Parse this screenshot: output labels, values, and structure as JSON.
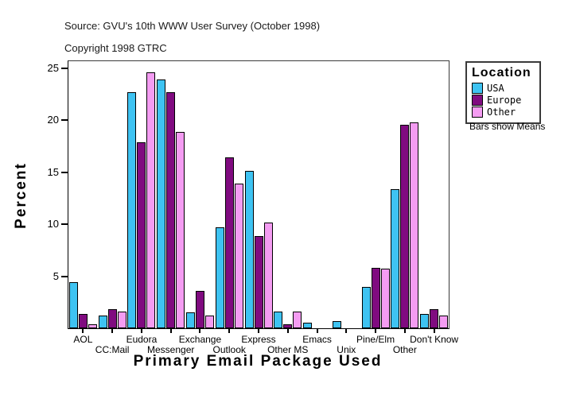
{
  "header": {
    "source": "Source: GVU's 10th WWW User Survey (October 1998)",
    "copyright": "Copyright 1998 GTRC"
  },
  "legend": {
    "title": "Location",
    "items": [
      {
        "label": "USA",
        "color": "#3ec3f2"
      },
      {
        "label": "Europe",
        "color": "#800b80"
      },
      {
        "label": "Other",
        "color": "#f49cf2"
      }
    ],
    "note": "Bars show Means"
  },
  "chart_data": {
    "type": "bar",
    "title": "",
    "xlabel": "Primary Email Package Used",
    "ylabel": "Percent",
    "ylim": [
      0,
      25.7
    ],
    "yticks": [
      5,
      10,
      15,
      20,
      25
    ],
    "grid": false,
    "legend_position": "right",
    "note": "Bars show Means",
    "categories": [
      "AOL",
      "CC:Mail",
      "Eudora",
      "Messenger",
      "Exchange",
      "Outlook",
      "Express",
      "Other MS",
      "Emacs",
      "Unix",
      "Pine/Elm",
      "Other",
      "Don't Know"
    ],
    "series": [
      {
        "name": "USA",
        "color": "#3ec3f2",
        "values": [
          4.4,
          1.2,
          22.7,
          23.9,
          1.5,
          9.7,
          15.1,
          1.6,
          0.5,
          0.7,
          4.0,
          13.4,
          1.4
        ]
      },
      {
        "name": "Europe",
        "color": "#800b80",
        "values": [
          1.4,
          1.8,
          17.9,
          22.7,
          3.6,
          16.4,
          8.9,
          0.4,
          0,
          0,
          5.8,
          19.6,
          1.8
        ]
      },
      {
        "name": "Other",
        "color": "#f49cf2",
        "values": [
          0.4,
          1.6,
          24.6,
          18.9,
          1.2,
          13.9,
          10.2,
          1.6,
          0,
          0,
          5.7,
          19.8,
          1.2
        ]
      }
    ]
  }
}
